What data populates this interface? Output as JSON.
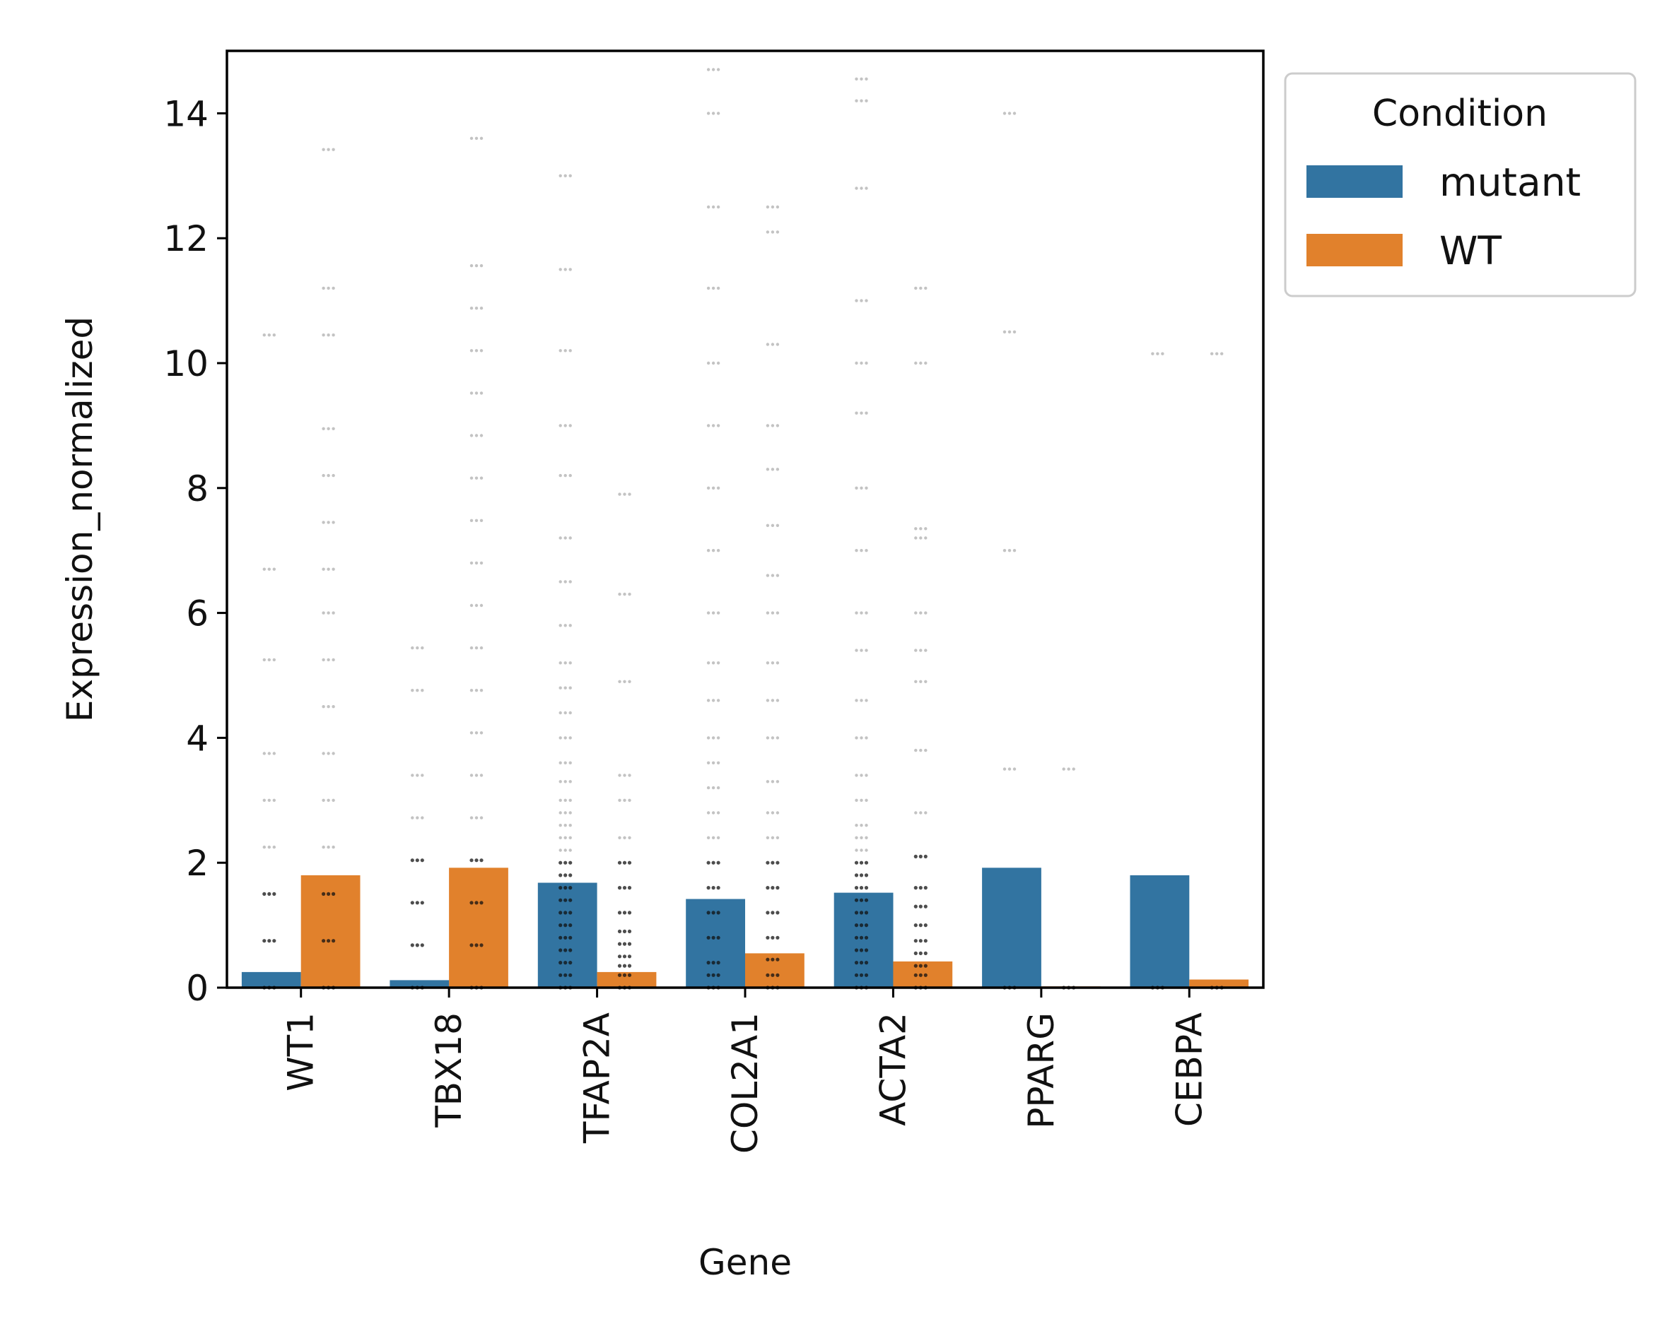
{
  "chart_data": {
    "type": "bar",
    "xlabel": "Gene",
    "ylabel": "Expression_normalized",
    "ylim": [
      0,
      15
    ],
    "yticks": [
      0,
      2,
      4,
      6,
      8,
      10,
      12,
      14
    ],
    "categories": [
      "WT1",
      "TBX18",
      "TFAP2A",
      "COL2A1",
      "ACTA2",
      "PPARG",
      "CEBPA"
    ],
    "series": [
      {
        "name": "mutant",
        "color": "#3274a1",
        "values": [
          0.25,
          0.12,
          1.68,
          1.42,
          1.52,
          1.92,
          1.8
        ]
      },
      {
        "name": "WT",
        "color": "#e1812c",
        "values": [
          1.8,
          1.92,
          0.25,
          0.55,
          0.42,
          0.02,
          0.13
        ]
      }
    ],
    "points": {
      "mutant": [
        [
          0,
          0.75,
          1.5,
          2.25,
          3.0,
          3.75,
          5.25,
          6.7,
          10.45
        ],
        [
          0,
          0.68,
          1.36,
          2.04,
          2.72,
          3.4,
          4.76,
          5.44
        ],
        [
          0,
          0.2,
          0.4,
          0.6,
          0.8,
          1.0,
          1.2,
          1.4,
          1.6,
          1.8,
          2.0,
          2.2,
          2.4,
          2.6,
          2.8,
          3.0,
          3.3,
          3.6,
          4.0,
          4.4,
          4.8,
          5.2,
          5.8,
          6.5,
          7.2,
          8.2,
          9.0,
          10.2,
          11.5,
          13.0
        ],
        [
          0,
          0.2,
          0.4,
          0.8,
          1.2,
          1.6,
          2.0,
          2.4,
          2.8,
          3.2,
          3.6,
          4.0,
          4.6,
          5.2,
          6.0,
          7.0,
          8.0,
          9.0,
          10.0,
          11.2,
          12.5,
          14.0,
          14.7
        ],
        [
          0,
          0.2,
          0.4,
          0.6,
          0.8,
          1.0,
          1.2,
          1.4,
          1.6,
          1.8,
          2.0,
          2.2,
          2.4,
          2.6,
          3.0,
          3.4,
          4.0,
          4.6,
          5.4,
          6.0,
          7.0,
          8.0,
          9.2,
          10.0,
          11.0,
          12.8,
          14.2,
          14.55
        ],
        [
          0,
          3.5,
          7.0,
          10.5,
          14.0
        ],
        [
          0,
          10.15
        ]
      ],
      "WT": [
        [
          0,
          0.75,
          1.5,
          2.25,
          3.0,
          3.75,
          4.5,
          5.25,
          6.0,
          6.7,
          7.45,
          8.2,
          8.95,
          10.45,
          11.2,
          13.42
        ],
        [
          0,
          0.68,
          1.36,
          2.04,
          2.72,
          3.4,
          4.08,
          4.76,
          5.44,
          6.12,
          6.8,
          7.48,
          8.16,
          8.84,
          9.52,
          10.2,
          10.88,
          11.56,
          13.6
        ],
        [
          0,
          0.2,
          0.35,
          0.5,
          0.7,
          0.9,
          1.2,
          1.6,
          2.0,
          2.4,
          3.0,
          3.4,
          4.9,
          6.3,
          7.9
        ],
        [
          0,
          0.2,
          0.45,
          0.8,
          1.2,
          1.6,
          2.0,
          2.4,
          2.8,
          3.3,
          4.0,
          4.6,
          5.2,
          6.0,
          6.6,
          7.4,
          8.3,
          9.0,
          10.3,
          12.1,
          12.5
        ],
        [
          0,
          0.2,
          0.35,
          0.55,
          0.75,
          1.0,
          1.3,
          1.6,
          2.1,
          2.8,
          3.8,
          4.9,
          5.4,
          6.0,
          7.2,
          7.35,
          10.0,
          11.2
        ],
        [
          0,
          3.5
        ],
        [
          0,
          10.15
        ]
      ]
    },
    "legend": {
      "title": "Condition",
      "placement": "outside-upper-right",
      "entries": [
        {
          "label": "mutant",
          "color": "#3274a1"
        },
        {
          "label": "WT",
          "color": "#e1812c"
        }
      ]
    }
  }
}
